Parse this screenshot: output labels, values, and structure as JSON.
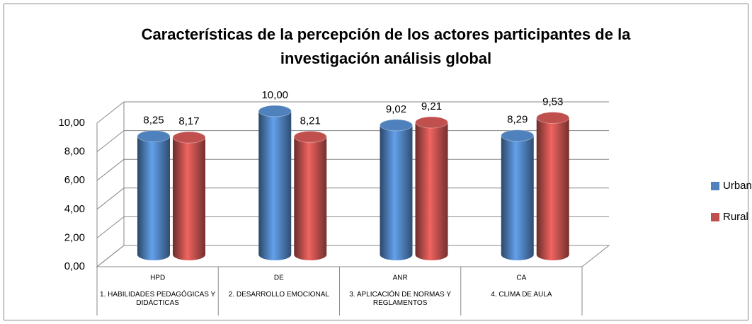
{
  "chart_data": {
    "type": "bar3d",
    "title": [
      "Características de la percepción de los actores participantes de la",
      "investigación análisis global"
    ],
    "categories": [
      "HPD",
      "DE",
      "ANR",
      "CA"
    ],
    "category_groups": [
      "1. HABILIDADES PEDAGÓGICAS Y DIDÁCTICAS",
      "2. DESARROLLO EMOCIONAL",
      "3. APLICACIÓN DE NORMAS Y REGLAMENTOS",
      "4. CLIMA DE AULA"
    ],
    "series": [
      {
        "name": "Urbano",
        "color": "#4f81bd",
        "values": [
          8.25,
          10.0,
          9.02,
          8.29
        ],
        "value_labels": [
          "8,25",
          "10,00",
          "9,02",
          "8,29"
        ]
      },
      {
        "name": "Rural",
        "color": "#c0504d",
        "values": [
          8.17,
          8.21,
          9.21,
          9.53
        ],
        "value_labels": [
          "8,17",
          "8,21",
          "9,21",
          "9,53"
        ]
      }
    ],
    "ylim": [
      0,
      10
    ],
    "yticks": [
      {
        "value": 0,
        "label": "0,00"
      },
      {
        "value": 2,
        "label": "2,00"
      },
      {
        "value": 4,
        "label": "4,00"
      },
      {
        "value": 6,
        "label": "6,00"
      },
      {
        "value": 8,
        "label": "8,00"
      },
      {
        "value": 10,
        "label": "10,00"
      }
    ],
    "grid": true,
    "legend": "right"
  }
}
